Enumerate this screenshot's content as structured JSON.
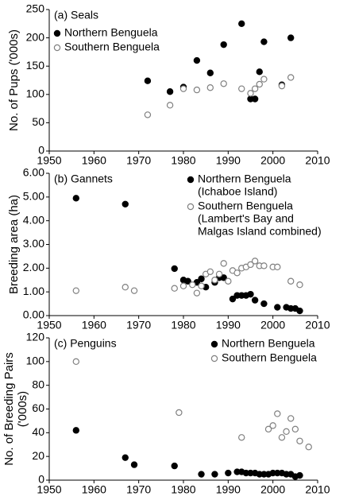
{
  "chart_data": [
    {
      "type": "scatter",
      "title": "(a) Seals",
      "y_label": "No. of Pups ('000s)",
      "legend": "upper left",
      "xlim": [
        1950,
        2010
      ],
      "xticks": [
        1950,
        1960,
        1970,
        1980,
        1990,
        2000,
        2010
      ],
      "ylim": [
        0,
        250
      ],
      "yticks": [
        0,
        50,
        100,
        150,
        200,
        250
      ],
      "series": [
        {
          "name": "Northern Benguela",
          "color": "#000000",
          "filled": true,
          "x": [
            1972,
            1977,
            1980,
            1983,
            1986,
            1989,
            1993,
            1995,
            1996,
            1997,
            1998,
            2002,
            2004
          ],
          "values": [
            124,
            105,
            113,
            160,
            138,
            188,
            225,
            92,
            92,
            140,
            193,
            117,
            200
          ]
        },
        {
          "name": "Southern Benguela",
          "color": "#808080",
          "filled": false,
          "x": [
            1972,
            1977,
            1980,
            1983,
            1986,
            1989,
            1993,
            1995,
            1996,
            1997,
            1998,
            2002,
            2004
          ],
          "values": [
            64,
            81,
            110,
            108,
            112,
            119,
            110,
            102,
            110,
            118,
            127,
            115,
            130
          ]
        }
      ]
    },
    {
      "type": "scatter",
      "title": "(b) Gannets",
      "y_label": "Breeding area (ha)",
      "legend": "upper right",
      "xlim": [
        1950,
        2010
      ],
      "xticks": [
        1950,
        1960,
        1970,
        1980,
        1990,
        2000,
        2010
      ],
      "ylim": [
        0,
        6
      ],
      "yticks": [
        {
          "value": 0,
          "label": "0.00"
        },
        {
          "value": 1,
          "label": "1.00"
        },
        {
          "value": 2,
          "label": "2.00"
        },
        {
          "value": 3,
          "label": "3.00"
        },
        {
          "value": 4,
          "label": "4.00"
        },
        {
          "value": 5,
          "label": "5.00"
        },
        {
          "value": 6,
          "label": "6.00"
        }
      ],
      "series": [
        {
          "name": [
            "Northern Benguela",
            "(Ichaboe Island)"
          ],
          "color": "#000000",
          "filled": true,
          "x": [
            1956,
            1967,
            1978,
            1980,
            1981,
            1983,
            1984,
            1985,
            1987,
            1988,
            1989,
            1991,
            1992,
            1993,
            1994,
            1995,
            1996,
            1998,
            2001,
            2003,
            2004,
            2005,
            2006
          ],
          "values": [
            4.95,
            4.7,
            1.98,
            1.5,
            1.45,
            1.4,
            1.55,
            1.2,
            1.4,
            1.6,
            1.6,
            0.7,
            0.85,
            0.85,
            0.85,
            0.9,
            0.65,
            0.5,
            0.35,
            0.35,
            0.3,
            0.3,
            0.2
          ]
        },
        {
          "name": [
            "Southern Benguela",
            "(Lambert's Bay and",
            "Malgas Island combined)"
          ],
          "color": "#808080",
          "filled": false,
          "x": [
            1956,
            1967,
            1969,
            1978,
            1980,
            1982,
            1983,
            1984,
            1985,
            1986,
            1987,
            1988,
            1989,
            1990,
            1991,
            1992,
            1993,
            1994,
            1995,
            1996,
            1997,
            1998,
            2000,
            2001,
            2004,
            2006
          ],
          "values": [
            1.05,
            1.2,
            1.05,
            1.15,
            1.25,
            1.3,
            0.95,
            1.25,
            1.75,
            1.85,
            1.5,
            1.75,
            2.2,
            1.45,
            1.9,
            1.8,
            2.0,
            2.05,
            2.15,
            2.3,
            2.1,
            2.1,
            2.05,
            2.05,
            1.45,
            1.3
          ]
        }
      ]
    },
    {
      "type": "scatter",
      "title": "(c) Penguins",
      "y_label": [
        "No. of Breeding Pairs",
        "('000s)"
      ],
      "legend": "upper right",
      "xlim": [
        1950,
        2010
      ],
      "xticks": [
        1950,
        1960,
        1970,
        1980,
        1990,
        2000,
        2010
      ],
      "ylim": [
        0,
        120
      ],
      "yticks": [
        0,
        20,
        40,
        60,
        80,
        100,
        120
      ],
      "series": [
        {
          "name": "Northern Benguela",
          "color": "#000000",
          "filled": true,
          "x": [
            1956,
            1967,
            1969,
            1978,
            1984,
            1987,
            1990,
            1992,
            1993,
            1994,
            1995,
            1996,
            1997,
            1998,
            1999,
            2000,
            2001,
            2002,
            2003,
            2004,
            2005,
            2006
          ],
          "values": [
            42,
            19,
            13,
            12,
            5,
            5,
            6,
            7,
            7,
            6,
            6,
            6,
            5,
            5,
            5,
            6,
            6,
            6,
            5,
            5,
            3,
            4
          ]
        },
        {
          "name": "Southern Benguela",
          "color": "#808080",
          "filled": false,
          "x": [
            1956,
            1979,
            1993,
            1999,
            2000,
            2001,
            2002,
            2003,
            2004,
            2005,
            2006,
            2008
          ],
          "values": [
            100,
            57,
            36,
            43,
            46,
            56,
            36,
            41,
            52,
            43,
            33,
            28
          ]
        }
      ]
    }
  ]
}
